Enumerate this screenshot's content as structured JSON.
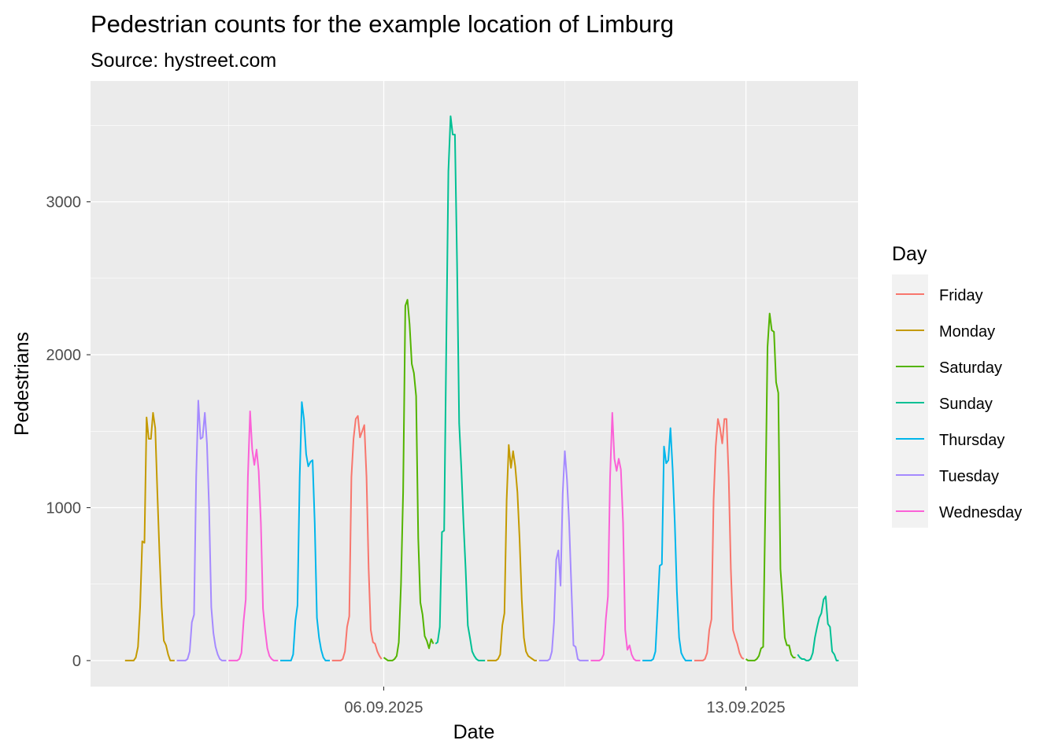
{
  "chart_data": {
    "type": "line",
    "title": "Pedestrian counts for the example location of Limburg",
    "subtitle": "Source: hystreet.com",
    "xlabel": "Date",
    "ylabel": "Pedestrians",
    "xlim": [
      "2025-08-31T08:00",
      "2025-09-15T04:00"
    ],
    "ylim": [
      -170,
      3790
    ],
    "y_ticks": [
      0,
      1000,
      2000,
      3000
    ],
    "x_ticks": [
      {
        "date": "2025-09-06T00:00",
        "label": "06.09.2025"
      },
      {
        "date": "2025-09-13T00:00",
        "label": "13.09.2025"
      }
    ],
    "x_minor_grid": [
      "2025-09-03T00:00",
      "2025-09-09T12:00"
    ],
    "grid": true,
    "legend": {
      "title": "Day",
      "position": "right"
    },
    "series": [
      {
        "name": "Friday",
        "color": "#F8766D",
        "segments": [
          {
            "start": "2025-09-05T00:00",
            "values": [
              0,
              0,
              0,
              0,
              0,
              10,
              60,
              220,
              290,
              1200,
              1450,
              1580,
              1600,
              1460,
              1500,
              1540,
              1200,
              600,
              200,
              120,
              110,
              60,
              30,
              10
            ]
          },
          {
            "start": "2025-09-12T00:00",
            "values": [
              0,
              0,
              0,
              0,
              0,
              10,
              50,
              200,
              270,
              1050,
              1400,
              1580,
              1520,
              1420,
              1580,
              1580,
              1200,
              600,
              200,
              150,
              110,
              50,
              20,
              10
            ]
          }
        ]
      },
      {
        "name": "Monday",
        "color": "#C49A00",
        "segments": [
          {
            "start": "2025-09-01T00:00",
            "values": [
              0,
              0,
              0,
              0,
              0,
              20,
              90,
              350,
              780,
              770,
              1590,
              1450,
              1450,
              1620,
              1520,
              1100,
              700,
              350,
              130,
              100,
              40,
              0,
              0,
              0
            ]
          },
          {
            "start": "2025-09-08T00:00",
            "values": [
              0,
              0,
              0,
              0,
              0,
              10,
              40,
              230,
              310,
              1050,
              1410,
              1260,
              1370,
              1270,
              1100,
              800,
              400,
              150,
              60,
              30,
              20,
              10,
              0,
              0
            ]
          }
        ]
      },
      {
        "name": "Saturday",
        "color": "#53B400",
        "segments": [
          {
            "start": "2025-09-06T00:00",
            "values": [
              20,
              10,
              0,
              0,
              0,
              10,
              30,
              120,
              500,
              1100,
              2320,
              2360,
              2200,
              1940,
              1880,
              1730,
              800,
              380,
              300,
              160,
              130,
              80,
              140,
              110
            ]
          },
          {
            "start": "2025-09-13T00:00",
            "values": [
              10,
              0,
              0,
              0,
              0,
              10,
              30,
              80,
              90,
              1000,
              2050,
              2270,
              2160,
              2150,
              1820,
              1750,
              600,
              400,
              150,
              100,
              100,
              40,
              20,
              20
            ]
          }
        ]
      },
      {
        "name": "Sunday",
        "color": "#00C094",
        "segments": [
          {
            "start": "2025-09-07T00:00",
            "values": [
              110,
              120,
              220,
              840,
              850,
              2050,
              3200,
              3560,
              3440,
              3440,
              2600,
              1550,
              1250,
              900,
              600,
              230,
              150,
              60,
              30,
              10,
              0,
              0,
              0,
              0
            ]
          },
          {
            "start": "2025-09-14T00:00",
            "values": [
              40,
              20,
              10,
              10,
              0,
              0,
              10,
              50,
              150,
              220,
              280,
              310,
              400,
              420,
              240,
              220,
              60,
              40,
              0,
              0
            ]
          }
        ]
      },
      {
        "name": "Thursday",
        "color": "#00B6EB",
        "segments": [
          {
            "start": "2025-09-04T00:00",
            "values": [
              0,
              0,
              0,
              0,
              0,
              0,
              40,
              260,
              360,
              1200,
              1690,
              1580,
              1350,
              1270,
              1300,
              1310,
              900,
              280,
              150,
              70,
              20,
              0,
              0,
              0
            ]
          },
          {
            "start": "2025-09-11T00:00",
            "values": [
              0,
              0,
              0,
              0,
              0,
              10,
              60,
              330,
              620,
              630,
              1400,
              1290,
              1310,
              1520,
              1250,
              900,
              450,
              150,
              50,
              20,
              0,
              0,
              0,
              0
            ]
          }
        ]
      },
      {
        "name": "Tuesday",
        "color": "#A58AFF",
        "segments": [
          {
            "start": "2025-09-02T00:00",
            "values": [
              0,
              0,
              0,
              0,
              0,
              10,
              60,
              250,
              300,
              1200,
              1700,
              1450,
              1460,
              1620,
              1420,
              1000,
              350,
              180,
              90,
              40,
              10,
              0,
              0,
              0
            ]
          },
          {
            "start": "2025-09-09T00:00",
            "values": [
              0,
              0,
              0,
              0,
              0,
              10,
              60,
              250,
              660,
              720,
              490,
              1090,
              1370,
              1180,
              900,
              500,
              100,
              90,
              10,
              0,
              0,
              0,
              0,
              0
            ]
          }
        ]
      },
      {
        "name": "Wednesday",
        "color": "#FB61D7",
        "segments": [
          {
            "start": "2025-09-03T00:00",
            "values": [
              0,
              0,
              0,
              0,
              0,
              10,
              50,
              260,
              400,
              1200,
              1630,
              1380,
              1280,
              1380,
              1240,
              900,
              340,
              200,
              80,
              30,
              10,
              0,
              0,
              0
            ]
          },
          {
            "start": "2025-09-10T00:00",
            "values": [
              0,
              0,
              0,
              0,
              0,
              10,
              40,
              270,
              420,
              1200,
              1620,
              1320,
              1240,
              1320,
              1250,
              900,
              200,
              70,
              100,
              40,
              10,
              0,
              0,
              0
            ]
          }
        ]
      }
    ]
  }
}
